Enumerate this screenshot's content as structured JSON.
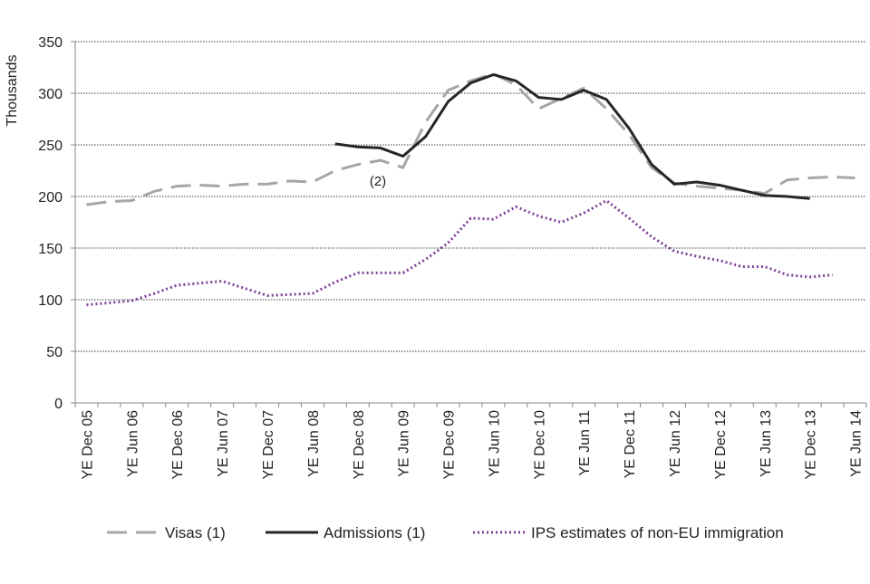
{
  "chart_data": {
    "type": "line",
    "y_label": "Thousands",
    "annotation": "(2)",
    "categories": [
      "YE Dec 05",
      null,
      "YE Jun 06",
      null,
      "YE Dec 06",
      null,
      "YE Jun 07",
      null,
      "YE Dec 07",
      null,
      "YE Jun 08",
      null,
      "YE Dec 08",
      null,
      "YE Jun 09",
      null,
      "YE Dec 09",
      null,
      "YE Jun 10",
      null,
      "YE Dec 10",
      null,
      "YE Jun 11",
      null,
      "YE Dec 11",
      null,
      "YE Jun 12",
      null,
      "YE Dec 12",
      null,
      "YE Jun 13",
      null,
      "YE Dec 13",
      null,
      "YE Jun 14"
    ],
    "series": [
      {
        "name": "Visas (1)",
        "color": "#a6a6a6",
        "dash": "dashed",
        "values": [
          192,
          195,
          196,
          205,
          210,
          211,
          210,
          212,
          212,
          215,
          214,
          225,
          231,
          235,
          228,
          272,
          303,
          312,
          319,
          308,
          285,
          295,
          305,
          285,
          260,
          228,
          213,
          210,
          208,
          206,
          203,
          216,
          218,
          219,
          218
        ]
      },
      {
        "name": "Admissions (1)",
        "color": "#262626",
        "dash": "solid",
        "values": [
          null,
          null,
          null,
          null,
          null,
          null,
          null,
          null,
          null,
          null,
          null,
          251,
          248,
          247,
          239,
          258,
          292,
          310,
          318,
          312,
          296,
          294,
          303,
          294,
          266,
          231,
          212,
          214,
          211,
          206,
          201,
          200,
          198,
          null,
          null
        ]
      },
      {
        "name": "IPS estimates of non-EU immigration",
        "color": "#7f3f98",
        "dash": "dotted",
        "values": [
          95,
          97,
          99,
          106,
          114,
          116,
          118,
          111,
          104,
          105,
          106,
          117,
          126,
          126,
          126,
          139,
          155,
          179,
          178,
          190,
          181,
          175,
          184,
          196,
          179,
          161,
          147,
          142,
          138,
          132,
          132,
          124,
          122,
          124,
          null
        ]
      }
    ],
    "ylim": [
      0,
      350
    ],
    "yticks": [
      0,
      50,
      100,
      150,
      200,
      250,
      300,
      350
    ],
    "grid": true,
    "legend": "bottom"
  }
}
